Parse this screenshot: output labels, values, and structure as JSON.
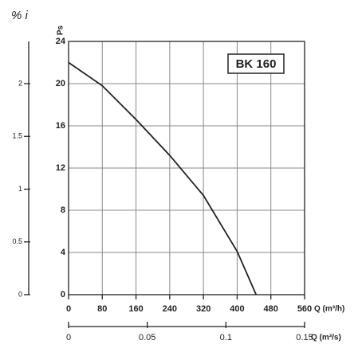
{
  "chart_data": {
    "type": "line",
    "ylabel": "Ps",
    "xlabel": "Q (m³/h)",
    "x2label": "Q (m³/s)",
    "y2label": "% i",
    "x": [
      0,
      80,
      160,
      240,
      320,
      400,
      445
    ],
    "series": [
      {
        "name": "BK 160",
        "color": "#222222",
        "values": [
          22,
          19.8,
          16.6,
          13.2,
          9.4,
          4.1,
          0
        ]
      }
    ],
    "xlim": [
      0,
      560
    ],
    "xticks": [
      0,
      80,
      160,
      240,
      320,
      400,
      480,
      560
    ],
    "ylim": [
      0,
      24
    ],
    "yticks": [
      0,
      4,
      8,
      12,
      16,
      20,
      24
    ],
    "y2lim": [
      0,
      2.4
    ],
    "y2ticks": [
      0,
      0.5,
      1,
      1.5,
      2
    ],
    "x2lim": [
      0,
      0.15
    ],
    "x2ticks": [
      0,
      0.05,
      0.1,
      0.15
    ],
    "grid": true
  }
}
